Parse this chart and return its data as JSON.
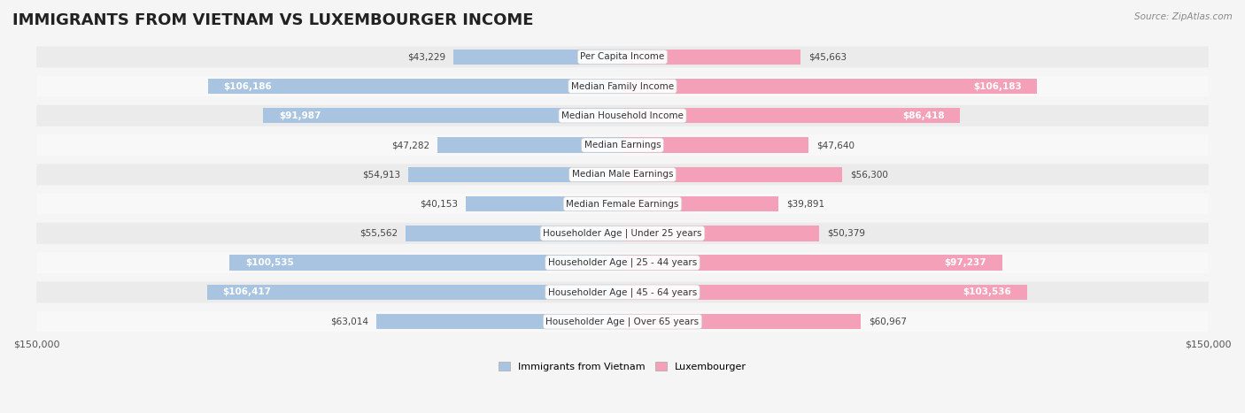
{
  "title": "IMMIGRANTS FROM VIETNAM VS LUXEMBOURGER INCOME",
  "source": "Source: ZipAtlas.com",
  "categories": [
    "Per Capita Income",
    "Median Family Income",
    "Median Household Income",
    "Median Earnings",
    "Median Male Earnings",
    "Median Female Earnings",
    "Householder Age | Under 25 years",
    "Householder Age | 25 - 44 years",
    "Householder Age | 45 - 64 years",
    "Householder Age | Over 65 years"
  ],
  "vietnam_values": [
    43229,
    106186,
    91987,
    47282,
    54913,
    40153,
    55562,
    100535,
    106417,
    63014
  ],
  "luxembourger_values": [
    45663,
    106183,
    86418,
    47640,
    56300,
    39891,
    50379,
    97237,
    103536,
    60967
  ],
  "vietnam_labels": [
    "$43,229",
    "$106,186",
    "$91,987",
    "$47,282",
    "$54,913",
    "$40,153",
    "$55,562",
    "$100,535",
    "$106,417",
    "$63,014"
  ],
  "luxembourger_labels": [
    "$45,663",
    "$106,183",
    "$86,418",
    "$47,640",
    "$56,300",
    "$39,891",
    "$50,379",
    "$97,237",
    "$103,536",
    "$60,967"
  ],
  "vietnam_color": "#a8c4e0",
  "luxembourger_color": "#f4a0b8",
  "vietnam_color_dark": "#6fa8d4",
  "luxembourger_color_dark": "#f06090",
  "max_value": 150000,
  "background_color": "#f5f5f5",
  "row_background": "#ffffff",
  "row_alt_background": "#f0f0f0",
  "label_threshold": 80000
}
